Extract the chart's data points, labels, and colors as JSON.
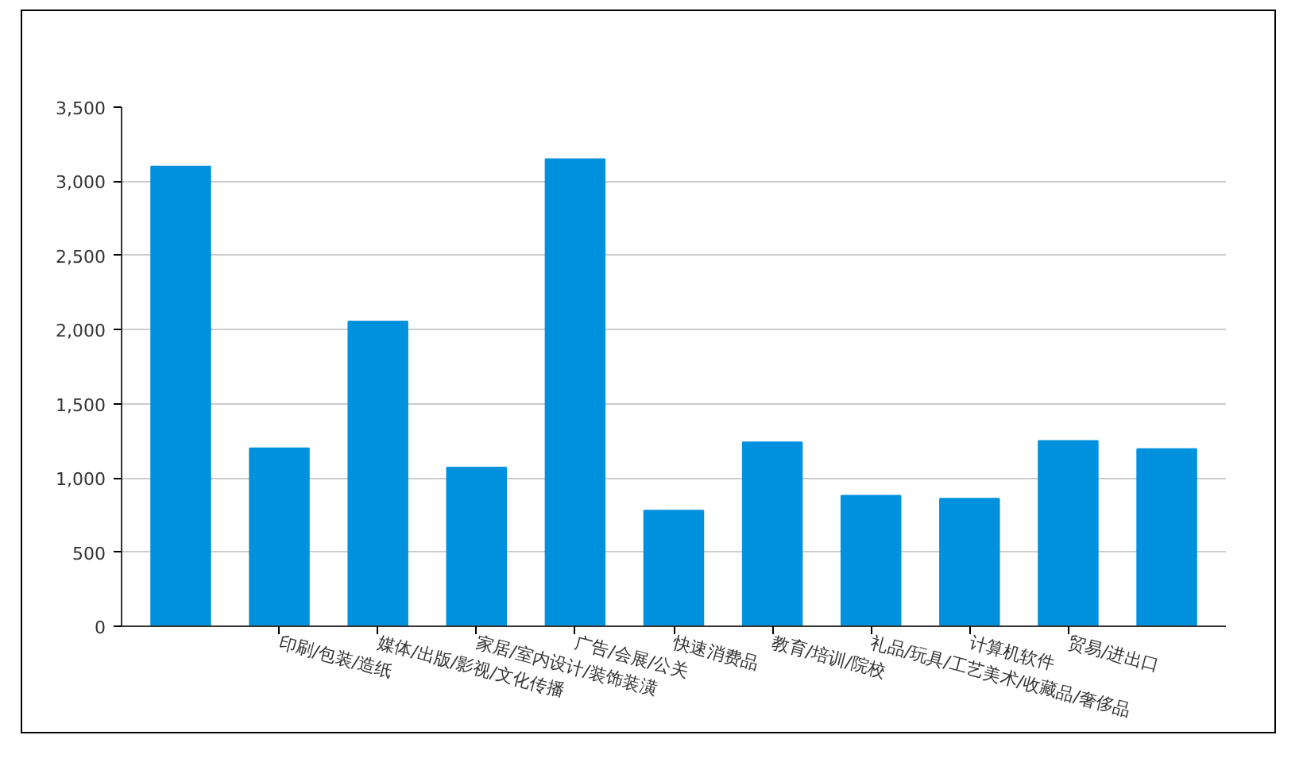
{
  "chart_data": {
    "type": "bar",
    "categories": [
      null,
      "印刷/包装/造纸",
      "媒体/出版/影视/文化传播",
      "家居/室内设计/装饰装潢",
      "广告/会展/公关",
      "快速消费品",
      "教育/培训/院校",
      "礼品/玩具/工艺美术/收藏品/奢侈品",
      "计算机软件",
      "贸易/进出口",
      null
    ],
    "values": [
      3100,
      1200,
      2055,
      1070,
      3150,
      780,
      1240,
      880,
      860,
      1250,
      1195
    ],
    "color": "#0091de",
    "ylim": [
      0,
      3500
    ],
    "yticks": [
      0,
      {
        "value": 500,
        "label": "500"
      },
      {
        "value": 1000,
        "label": "1,000"
      },
      {
        "value": 1500,
        "label": "1,500"
      },
      {
        "value": 2000,
        "label": "2,000"
      },
      {
        "value": 2500,
        "label": "2,500"
      },
      {
        "value": 3000,
        "label": "3,000"
      },
      {
        "value": 3500,
        "label": "3,500"
      }
    ],
    "grid": "y"
  }
}
